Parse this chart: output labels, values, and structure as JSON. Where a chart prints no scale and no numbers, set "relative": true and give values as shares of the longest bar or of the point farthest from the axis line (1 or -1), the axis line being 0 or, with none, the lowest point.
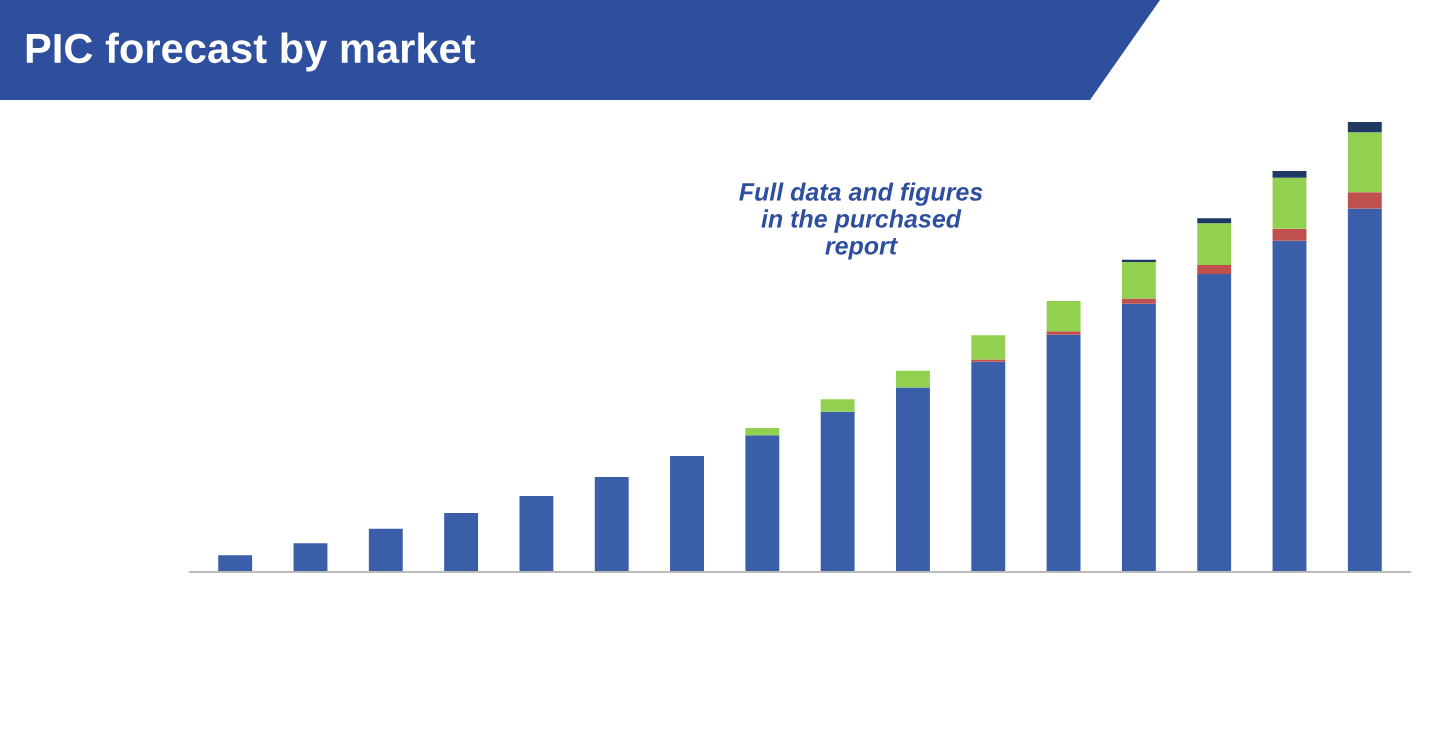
{
  "chart_data": {
    "type": "bar",
    "title": "PIC forecast by market",
    "relative": true,
    "stacked": true,
    "categories": [
      null,
      null,
      null,
      null,
      null,
      null,
      null,
      null,
      null,
      null,
      null,
      null,
      null,
      null,
      null,
      null
    ],
    "series": [
      {
        "color": "#3b5ea8",
        "values": [
          0.037,
          0.064,
          0.096,
          0.131,
          0.169,
          0.211,
          0.258,
          0.304,
          0.356,
          0.41,
          0.467,
          0.527,
          0.596,
          0.662,
          0.736,
          0.808
        ]
      },
      {
        "color": "#c0504d",
        "values": [
          0,
          0,
          0,
          0,
          0,
          0,
          0,
          0,
          0,
          0,
          0.005,
          0.008,
          0.012,
          0.02,
          0.027,
          0.036
        ]
      },
      {
        "color": "#92d050",
        "values": [
          0,
          0,
          0,
          0,
          0,
          0,
          0,
          0.016,
          0.028,
          0.037,
          0.054,
          0.067,
          0.081,
          0.093,
          0.113,
          0.133
        ]
      },
      {
        "color": "#1f3864",
        "values": [
          0,
          0,
          0,
          0,
          0,
          0,
          0,
          0,
          0,
          0,
          0,
          0,
          0.005,
          0.011,
          0.015,
          0.023
        ]
      }
    ],
    "annotations": [
      "Full data and figures\nin the purchased\nreport"
    ]
  }
}
